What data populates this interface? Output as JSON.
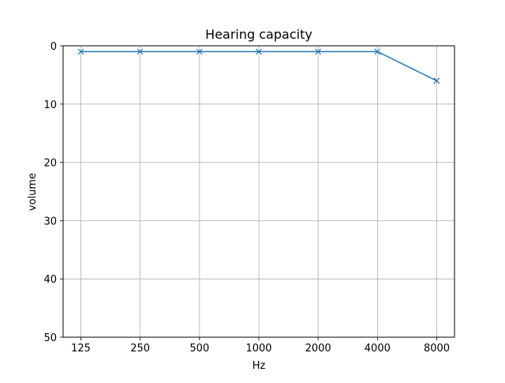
{
  "chart_data": {
    "type": "line",
    "title": "Hearing capacity",
    "xlabel": "Hz",
    "ylabel": "volume",
    "categories": [
      "125",
      "250",
      "500",
      "1000",
      "2000",
      "4000",
      "8000"
    ],
    "series": [
      {
        "values": [
          1,
          1,
          1,
          1,
          1,
          1,
          6
        ],
        "color": "#1f77b4",
        "marker": "x"
      }
    ],
    "ylim": [
      0,
      50
    ],
    "y_inverted": true,
    "yticks": [
      0,
      10,
      20,
      30,
      40,
      50
    ],
    "grid": true
  }
}
